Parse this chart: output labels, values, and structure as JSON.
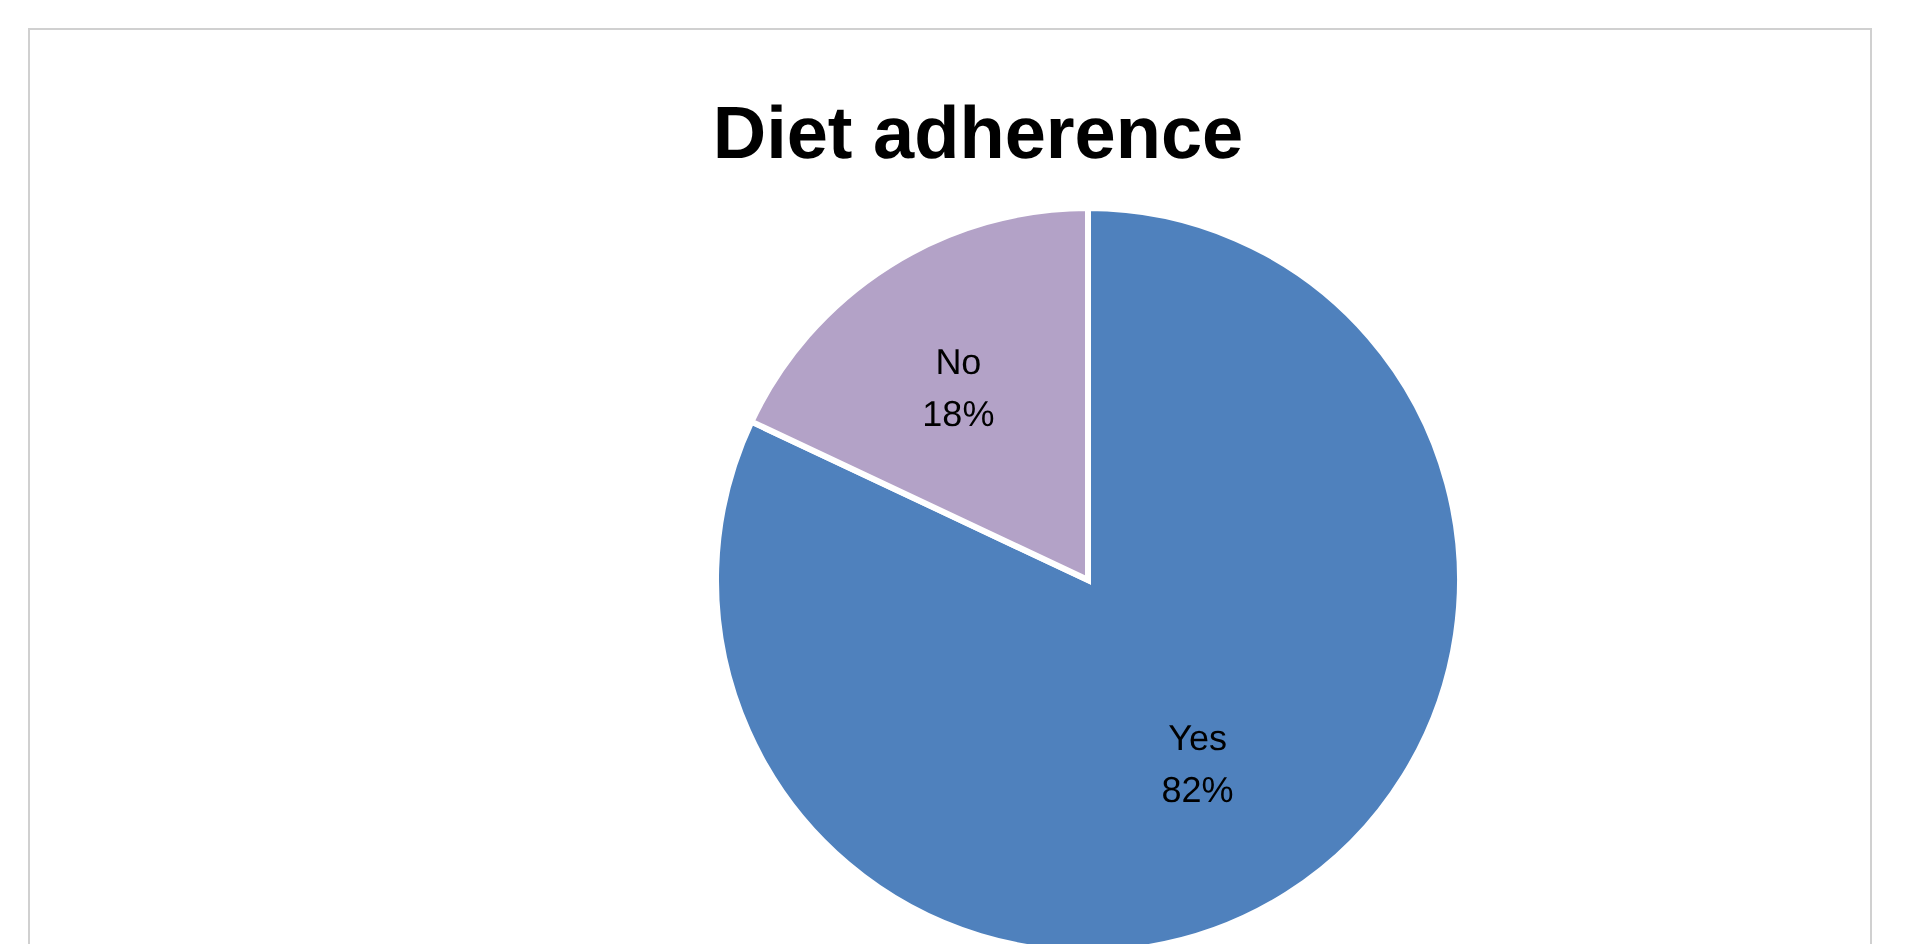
{
  "chart_data": {
    "type": "pie",
    "title": "Diet adherence",
    "categories": [
      "Yes",
      "No"
    ],
    "values": [
      82,
      18
    ],
    "value_labels": [
      "82%",
      "18%"
    ],
    "colors": [
      "#4f81bd",
      "#b3a2c7"
    ],
    "legend": false
  }
}
